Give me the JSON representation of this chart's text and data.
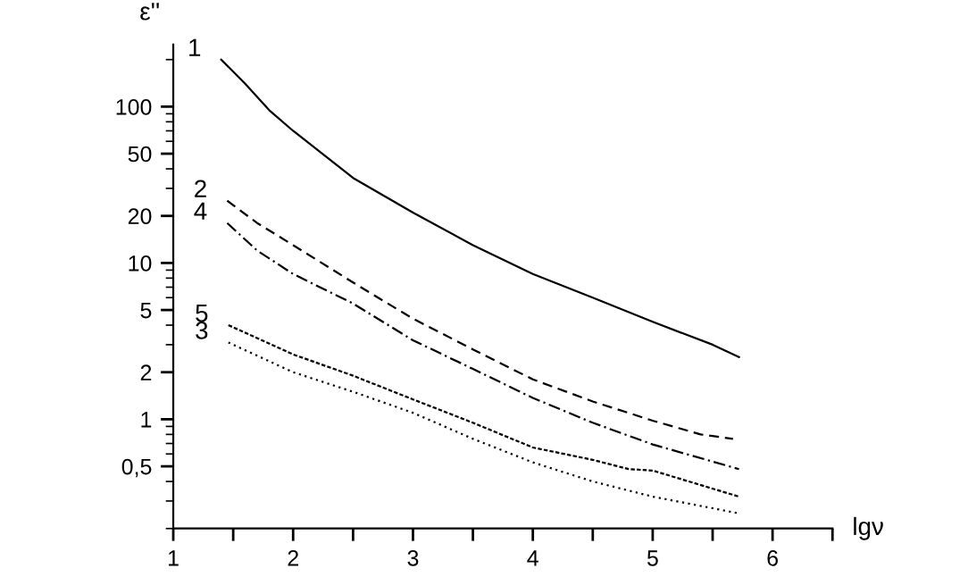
{
  "chart_data": {
    "type": "line",
    "xlabel": "lgν",
    "ylabel": "ε''",
    "log": "y",
    "grid": false,
    "legend": false,
    "marker": "none",
    "xlim": [
      1,
      6.5
    ],
    "ylim": [
      0.2,
      250
    ],
    "xticks": [
      1,
      {
        "value": 1.5,
        "label": null
      },
      2,
      {
        "value": 2.5,
        "label": null
      },
      3,
      {
        "value": 3.5,
        "label": null
      },
      4,
      {
        "value": 4.5,
        "label": null
      },
      5,
      {
        "value": 5.5,
        "label": null
      },
      6,
      {
        "value": 6.5,
        "label": null
      }
    ],
    "yticks": [
      {
        "value": 0.5,
        "label": "0,5"
      },
      1,
      2,
      5,
      10,
      20,
      50,
      100
    ],
    "series": [
      {
        "name": "1",
        "color": "#000000",
        "line_style": "solid",
        "x": [
          1.4,
          1.6,
          1.8,
          2,
          2.5,
          3,
          3.5,
          4,
          4.5,
          5,
          5.5,
          5.72
        ],
        "values": [
          200,
          140,
          95,
          70,
          35,
          21,
          13,
          8.5,
          6,
          4.2,
          3,
          2.5
        ]
      },
      {
        "name": "2",
        "color": "#000000",
        "line_style": "dashed",
        "x": [
          1.45,
          1.7,
          2,
          2.5,
          3,
          3.5,
          4,
          4.5,
          5,
          5.4,
          5.67
        ],
        "values": [
          25,
          18,
          13,
          7.5,
          4.4,
          2.8,
          1.8,
          1.3,
          0.98,
          0.8,
          0.75
        ]
      },
      {
        "name": "4",
        "color": "#000000",
        "line_style": "dashdot",
        "x": [
          1.45,
          1.7,
          2,
          2.5,
          3,
          3.5,
          4,
          4.5,
          5,
          5.72
        ],
        "values": [
          18,
          12,
          8.5,
          5.5,
          3.2,
          2.1,
          1.37,
          0.95,
          0.69,
          0.48
        ]
      },
      {
        "name": "5",
        "color": "#000000",
        "line_style": "densedot",
        "x": [
          1.46,
          2,
          2.5,
          3,
          3.5,
          4,
          4.5,
          4.8,
          5,
          5.72
        ],
        "values": [
          4,
          2.6,
          1.9,
          1.34,
          0.95,
          0.66,
          0.55,
          0.48,
          0.47,
          0.32
        ]
      },
      {
        "name": "3",
        "color": "#000000",
        "line_style": "dotted",
        "x": [
          1.46,
          2,
          2.5,
          3,
          3.5,
          4,
          4.5,
          5,
          5.72
        ],
        "values": [
          3.1,
          2,
          1.5,
          1.1,
          0.75,
          0.53,
          0.4,
          0.32,
          0.25
        ]
      }
    ]
  }
}
